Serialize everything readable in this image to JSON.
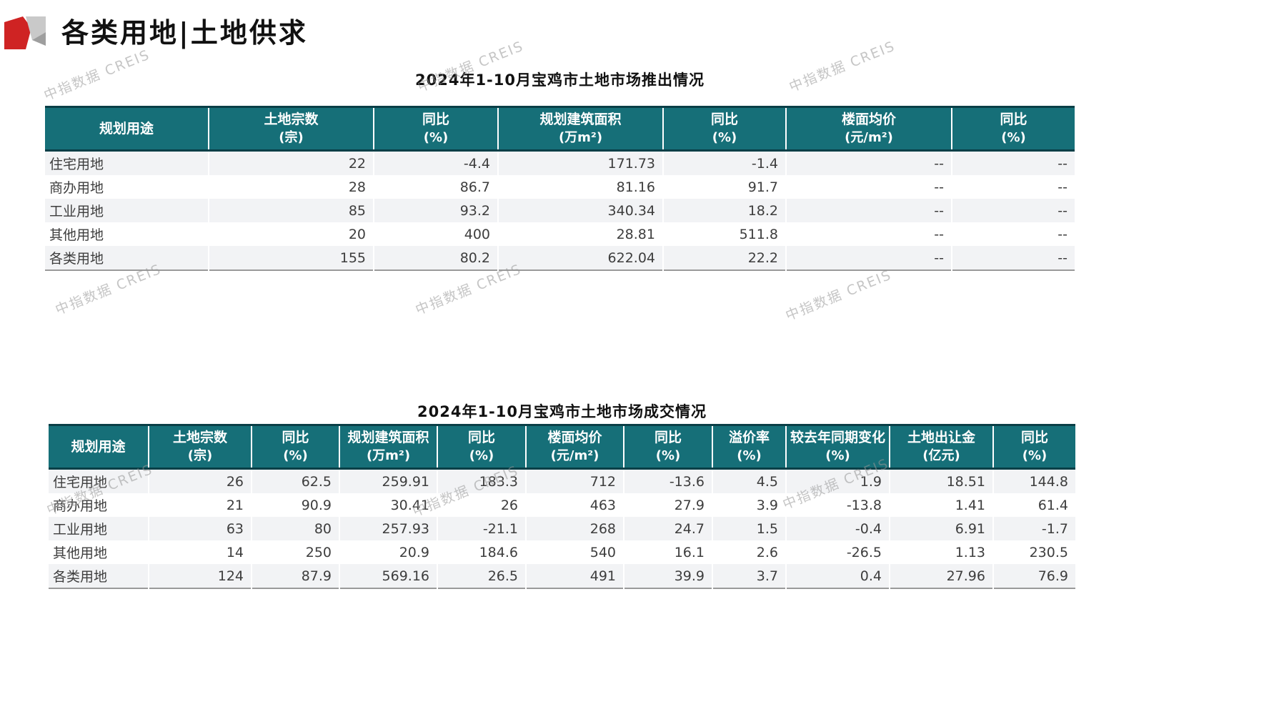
{
  "page": {
    "section_title": "各类用地|土地供求",
    "watermark_text": "中指数据 CREIS"
  },
  "colors": {
    "header_teal": "#166F78",
    "header_border_dark": "#0A3F47",
    "row_stripe": "#F2F3F5",
    "table_bottom_rule": "#9a9a9a",
    "logo_red": "#CF2323",
    "logo_gray_light": "#C9C9C9",
    "logo_gray_mid": "#9E9E9E"
  },
  "table1": {
    "title": "2024年1-10月宝鸡市土地市场推出情况",
    "columns": [
      {
        "label": "规划用途",
        "unit": ""
      },
      {
        "label": "土地宗数",
        "unit": "(宗)"
      },
      {
        "label": "同比",
        "unit": "(%)"
      },
      {
        "label": "规划建筑面积",
        "unit": "(万m²)"
      },
      {
        "label": "同比",
        "unit": "(%)"
      },
      {
        "label": "楼面均价",
        "unit": "(元/m²)"
      },
      {
        "label": "同比",
        "unit": "(%)"
      }
    ],
    "rows": [
      [
        "住宅用地",
        "22",
        "-4.4",
        "171.73",
        "-1.4",
        "--",
        "--"
      ],
      [
        "商办用地",
        "28",
        "86.7",
        "81.16",
        "91.7",
        "--",
        "--"
      ],
      [
        "工业用地",
        "85",
        "93.2",
        "340.34",
        "18.2",
        "--",
        "--"
      ],
      [
        "其他用地",
        "20",
        "400",
        "28.81",
        "511.8",
        "--",
        "--"
      ],
      [
        "各类用地",
        "155",
        "80.2",
        "622.04",
        "22.2",
        "--",
        "--"
      ]
    ]
  },
  "table2": {
    "title": "2024年1-10月宝鸡市土地市场成交情况",
    "columns": [
      {
        "label": "规划用途",
        "unit": ""
      },
      {
        "label": "土地宗数",
        "unit": "(宗)"
      },
      {
        "label": "同比",
        "unit": "(%)"
      },
      {
        "label": "规划建筑面积",
        "unit": "(万m²)"
      },
      {
        "label": "同比",
        "unit": "(%)"
      },
      {
        "label": "楼面均价",
        "unit": "(元/m²)"
      },
      {
        "label": "同比",
        "unit": "(%)"
      },
      {
        "label": "溢价率",
        "unit": "(%)"
      },
      {
        "label": "较去年同期变化",
        "unit": "(%)"
      },
      {
        "label": "土地出让金",
        "unit": "(亿元)"
      },
      {
        "label": "同比",
        "unit": "(%)"
      }
    ],
    "rows": [
      [
        "住宅用地",
        "26",
        "62.5",
        "259.91",
        "183.3",
        "712",
        "-13.6",
        "4.5",
        "1.9",
        "18.51",
        "144.8"
      ],
      [
        "商办用地",
        "21",
        "90.9",
        "30.41",
        "26",
        "463",
        "27.9",
        "3.9",
        "-13.8",
        "1.41",
        "61.4"
      ],
      [
        "工业用地",
        "63",
        "80",
        "257.93",
        "-21.1",
        "268",
        "24.7",
        "1.5",
        "-0.4",
        "6.91",
        "-1.7"
      ],
      [
        "其他用地",
        "14",
        "250",
        "20.9",
        "184.6",
        "540",
        "16.1",
        "2.6",
        "-26.5",
        "1.13",
        "230.5"
      ],
      [
        "各类用地",
        "124",
        "87.9",
        "569.16",
        "26.5",
        "491",
        "39.9",
        "3.7",
        "0.4",
        "27.96",
        "76.9"
      ]
    ]
  }
}
